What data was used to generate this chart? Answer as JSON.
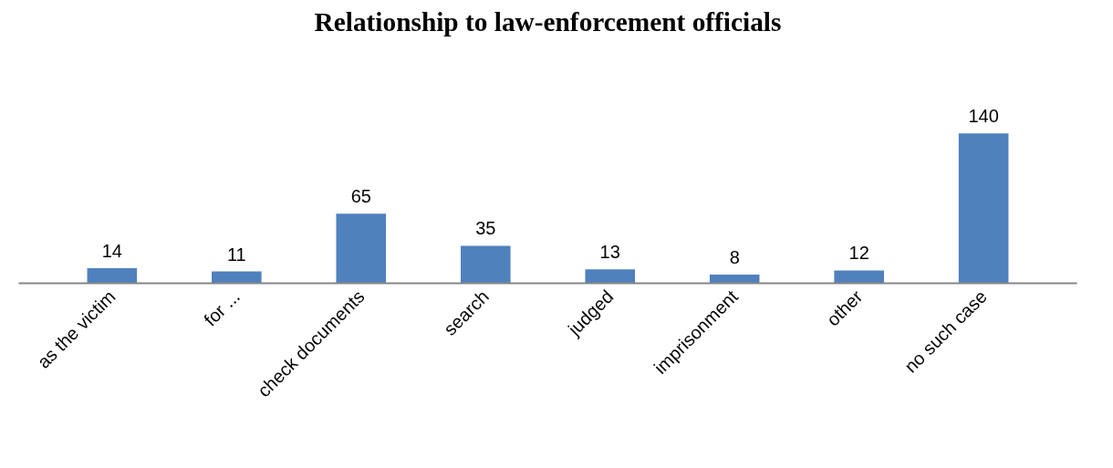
{
  "chart_data": {
    "type": "bar",
    "title": "Relationship to law-enforcement officials",
    "categories": [
      "as the victim",
      "for ...",
      "check documents",
      "search",
      "judged",
      "imprisonment",
      "other",
      "no such case"
    ],
    "values": [
      14,
      11,
      65,
      35,
      13,
      8,
      12,
      140
    ],
    "color": "#4f81bd",
    "data_labels": true
  }
}
